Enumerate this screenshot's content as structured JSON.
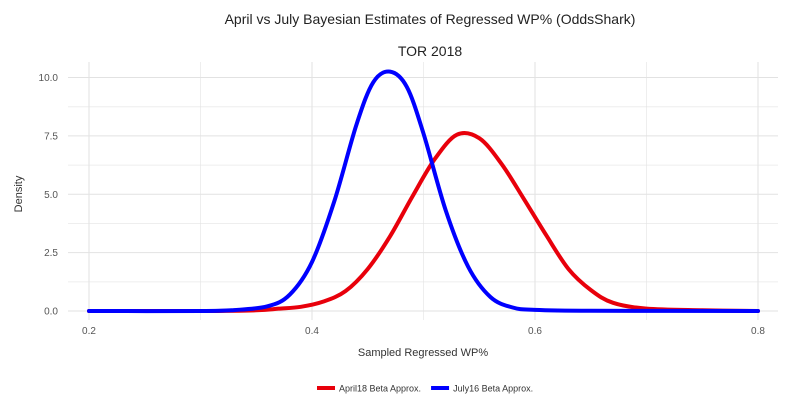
{
  "chart_data": {
    "type": "line",
    "title": "April vs July Bayesian Estimates of Regressed WP% (OddsShark)",
    "subtitle": "TOR  2018",
    "xlabel": "Sampled Regressed WP%",
    "ylabel": "Density",
    "xlim": [
      0.2,
      0.8
    ],
    "ylim": [
      0,
      10
    ],
    "x_ticks": [
      "0.2",
      "0.4",
      "0.6",
      "0.8"
    ],
    "y_ticks": [
      "0.0",
      "2.5",
      "5.0",
      "7.5",
      "10.0"
    ],
    "grid": true,
    "legend_position": "bottom",
    "series": [
      {
        "name": "April18 Beta Approx.",
        "color": "#e8000b",
        "x": [
          0.2,
          0.3,
          0.35,
          0.37,
          0.39,
          0.41,
          0.43,
          0.45,
          0.47,
          0.49,
          0.51,
          0.53,
          0.55,
          0.57,
          0.59,
          0.61,
          0.63,
          0.65,
          0.67,
          0.7,
          0.75,
          0.8
        ],
        "y": [
          0.0,
          0.0,
          0.03,
          0.1,
          0.18,
          0.4,
          0.85,
          1.8,
          3.2,
          4.9,
          6.5,
          7.55,
          7.4,
          6.3,
          4.8,
          3.25,
          1.8,
          0.9,
          0.35,
          0.1,
          0.03,
          0.0
        ]
      },
      {
        "name": "July16 Beta Approx.",
        "color": "#0000ff",
        "x": [
          0.2,
          0.3,
          0.33,
          0.36,
          0.38,
          0.4,
          0.42,
          0.44,
          0.455,
          0.47,
          0.485,
          0.5,
          0.52,
          0.54,
          0.56,
          0.58,
          0.6,
          0.65,
          0.8
        ],
        "y": [
          0.0,
          0.0,
          0.04,
          0.2,
          0.7,
          2.1,
          4.7,
          8.0,
          9.8,
          10.25,
          9.6,
          7.6,
          4.3,
          1.9,
          0.6,
          0.15,
          0.05,
          0.01,
          0.0
        ]
      }
    ]
  }
}
